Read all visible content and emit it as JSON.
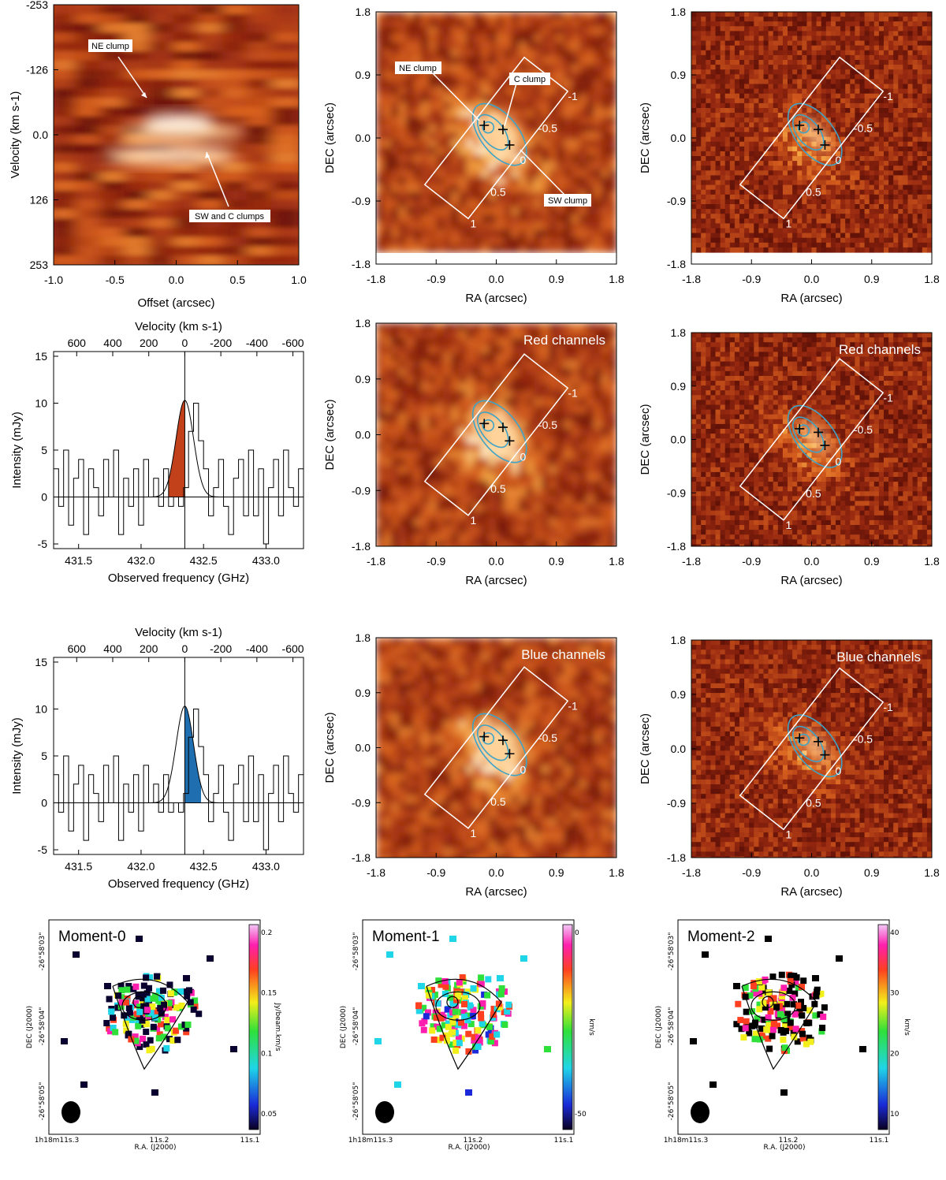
{
  "figure": {
    "callouts": {
      "ne": "NE clump",
      "sw_c": "SW and C clumps",
      "ne2": "NE clump",
      "c": "C clump",
      "sw": "SW clump"
    },
    "channel_labels": {
      "red": "Red channels",
      "blue": "Blue channels"
    },
    "slit_ticks": [
      "-1",
      "-0.5",
      "0",
      "0.5",
      "1"
    ],
    "moment_titles": [
      "Moment-0",
      "Moment-1",
      "Moment-2"
    ],
    "moment_units": [
      "Jy/beam.km/s",
      "km/s",
      "km/s"
    ],
    "moment_colorbar_ticks": [
      [
        "0.2",
        "0.15",
        "0.1",
        "0.05"
      ],
      [
        "0",
        "-50"
      ],
      [
        "40",
        "30",
        "20",
        "10"
      ]
    ],
    "moment_axes": {
      "ylabel": "DEC (J2000)",
      "xlabel": "R.A. (J2000)",
      "yticks": [
        "-26°58'03\"",
        "-26°58'04\"",
        "-26°58'05\""
      ],
      "xticks": [
        "1h18m11s.3",
        "11s.2",
        "11s.1"
      ]
    },
    "colors": {
      "heat_dark": "#5a0a05",
      "heat_mid": "#b5401a",
      "heat_bright": "#f5a640",
      "contour": "#3fa3c6",
      "red_fill": "#c2411b",
      "blue_fill": "#1f6fb0"
    }
  },
  "chart_data": [
    {
      "type": "heatmap",
      "name": "position-velocity diagram",
      "xlabel": "Offset (arcsec)",
      "ylabel": "Velocity (km s-1)",
      "xlim": [
        -1.0,
        1.0
      ],
      "ylim": [
        253,
        -253
      ],
      "xticks": [
        "-1.0",
        "-0.5",
        "0.0",
        "0.5",
        "1.0"
      ],
      "yticks": [
        "-253",
        "-126",
        "0.0",
        "126",
        "253"
      ]
    },
    {
      "type": "line",
      "name": "red spectrum",
      "xlabel": "Observed frequency (GHz)",
      "ylabel": "Intensity (mJy)",
      "top_xlabel": "Velocity (km s-1)",
      "xlim": [
        431.3,
        433.3
      ],
      "ylim": [
        -5.5,
        15.5
      ],
      "xticks": [
        "431.5",
        "432.0",
        "432.5",
        "433.0"
      ],
      "yticks": [
        "15",
        "10",
        "5",
        "0",
        "-5"
      ],
      "top_ticks": [
        "600",
        "400",
        "200",
        "0",
        "-200",
        "-400",
        "-600"
      ],
      "line_center_ghz": 432.35,
      "gaussian_peak_mjy": 10.3,
      "gaussian_sigma_ghz": 0.07,
      "shaded_range_ghz": [
        432.22,
        432.35
      ],
      "spectrum_mjy": [
        3,
        -1,
        5,
        -3,
        2,
        4,
        -4,
        3,
        1,
        -2,
        4,
        0,
        5,
        -4,
        2,
        -1,
        3,
        -3,
        4,
        0,
        2,
        -1,
        3,
        -1,
        0,
        -1,
        1,
        7,
        10,
        6,
        3,
        -2,
        1,
        4,
        -1,
        -4,
        2,
        4,
        -2,
        5,
        -2,
        3,
        -5,
        1,
        4,
        -2,
        5,
        1,
        -1,
        3
      ],
      "spectrum_start_ghz": 431.3,
      "channel_width_ghz": 0.04
    },
    {
      "type": "line",
      "name": "blue spectrum",
      "xlabel": "Observed frequency (GHz)",
      "ylabel": "Intensity (mJy)",
      "top_xlabel": "Velocity (km s-1)",
      "xlim": [
        431.3,
        433.3
      ],
      "ylim": [
        -5.5,
        15.5
      ],
      "xticks": [
        "431.5",
        "432.0",
        "432.5",
        "433.0"
      ],
      "yticks": [
        "15",
        "10",
        "5",
        "0",
        "-5"
      ],
      "top_ticks": [
        "600",
        "400",
        "200",
        "0",
        "-200",
        "-400",
        "-600"
      ],
      "line_center_ghz": 432.35,
      "gaussian_peak_mjy": 10.3,
      "gaussian_sigma_ghz": 0.07,
      "shaded_range_ghz": [
        432.35,
        432.48
      ],
      "spectrum_mjy": [
        3,
        -1,
        5,
        -3,
        2,
        4,
        -4,
        3,
        1,
        -2,
        4,
        0,
        5,
        -4,
        2,
        -1,
        3,
        -3,
        4,
        0,
        2,
        -1,
        3,
        -1,
        0,
        -1,
        1,
        7,
        10,
        6,
        3,
        -2,
        1,
        4,
        -1,
        -4,
        2,
        4,
        -2,
        5,
        -2,
        3,
        -5,
        1,
        4,
        -2,
        5,
        1,
        -1,
        3
      ],
      "spectrum_start_ghz": 431.3,
      "channel_width_ghz": 0.04
    },
    {
      "type": "heatmap",
      "name": "sky map",
      "panels": 6,
      "xlabel": "RA (arcsec)",
      "ylabel": "DEC (arcsec)",
      "xlim": [
        1.8,
        -1.8
      ],
      "ylim": [
        -1.8,
        1.8
      ],
      "xticks": [
        "-1.8",
        "-0.9",
        "0.0",
        "0.9",
        "1.8"
      ],
      "yticks": [
        "1.8",
        "0.9",
        "0.0",
        "-0.9",
        "-1.8"
      ]
    }
  ]
}
